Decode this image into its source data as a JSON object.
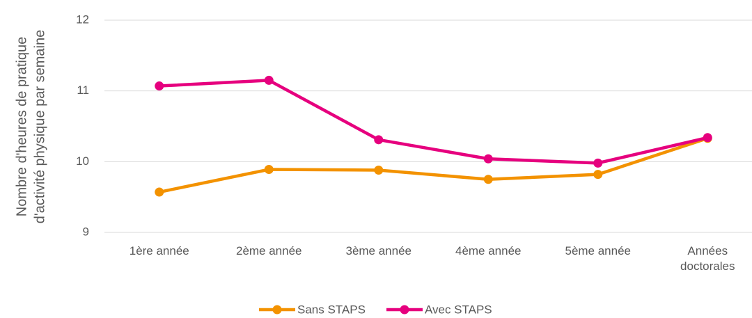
{
  "chart_data": {
    "type": "line",
    "y_label": [
      "Nombre d'heures de pratique",
      "d'activité physique par semaine"
    ],
    "categories": [
      "1ère année",
      "2ème année",
      "3ème année",
      "4ème année",
      "5ème année",
      "Années doctorales"
    ],
    "series": [
      {
        "name": "Sans STAPS",
        "color": "#f39200",
        "values": [
          9.57,
          9.89,
          9.88,
          9.75,
          9.82,
          10.33
        ]
      },
      {
        "name": "Avec STAPS",
        "color": "#e6007e",
        "values": [
          11.07,
          11.15,
          10.31,
          10.04,
          9.98,
          10.34
        ]
      }
    ],
    "ylim": [
      9,
      12
    ],
    "yticks": [
      9,
      10,
      11,
      12
    ],
    "grid": true,
    "legend": "bottom"
  }
}
